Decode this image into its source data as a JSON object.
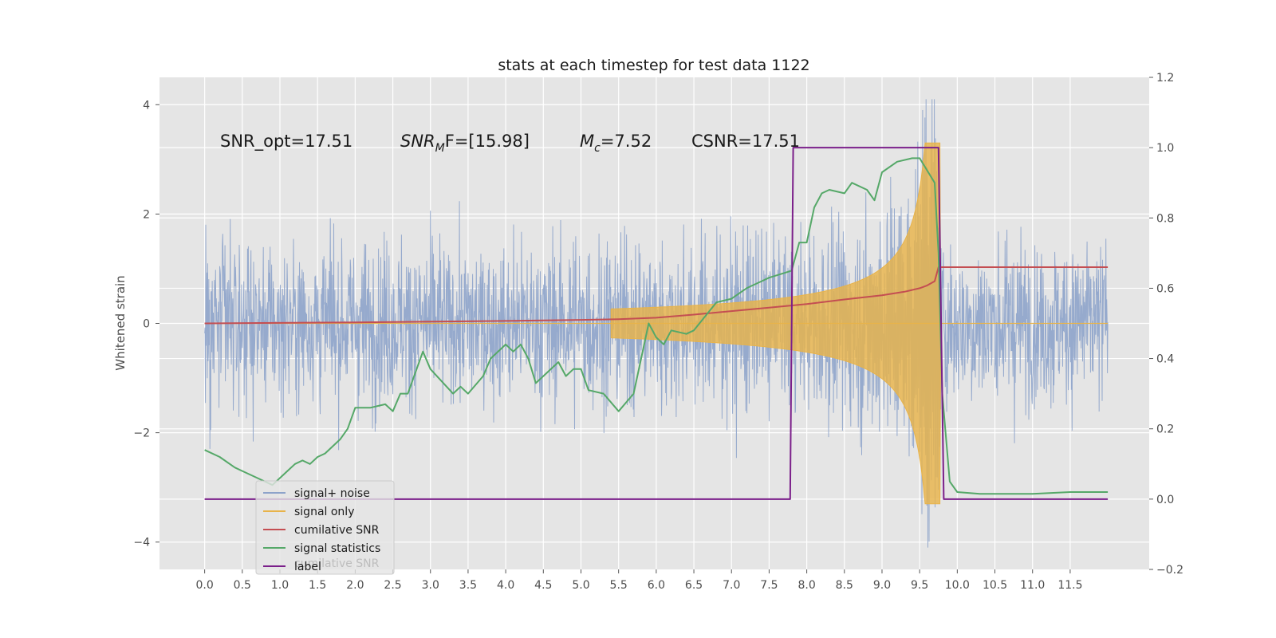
{
  "chart_data": {
    "type": "line",
    "title": "stats at each timestep for test data 1122",
    "ylabel": "Whitened strain",
    "y2label": "",
    "xlim": [
      -0.6,
      12.55
    ],
    "ylim": [
      -4.5,
      4.5
    ],
    "y2lim": [
      -0.2,
      1.2
    ],
    "grid": true,
    "x_ticks": [
      0.0,
      0.5,
      1.0,
      1.5,
      2.0,
      2.5,
      3.0,
      3.5,
      4.0,
      4.5,
      5.0,
      5.5,
      6.0,
      6.5,
      7.0,
      7.5,
      8.0,
      8.5,
      9.0,
      9.5,
      10.0,
      10.5,
      11.0,
      11.5
    ],
    "x_tick_labels": [
      "0.0",
      "0.5",
      "1.0",
      "1.5",
      "2.0",
      "2.5",
      "3.0",
      "3.5",
      "4.0",
      "4.5",
      "5.0",
      "5.5",
      "6.0",
      "6.5",
      "7.0",
      "7.5",
      "8.0",
      "8.5",
      "9.0",
      "9.5",
      "10.0",
      "10.5",
      "11.0",
      "11.5"
    ],
    "y_ticks": [
      -4,
      -2,
      0,
      2,
      4
    ],
    "y_tick_labels": [
      "−4",
      "−2",
      "0",
      "2",
      "4"
    ],
    "y2_ticks": [
      -0.2,
      0.0,
      0.2,
      0.4,
      0.6,
      0.8,
      1.0,
      1.2
    ],
    "y2_tick_labels": [
      "−0.2",
      "0.0",
      "0.2",
      "0.4",
      "0.6",
      "0.8",
      "1.0",
      "1.2"
    ],
    "annotations": {
      "snr_opt": "SNR_opt=17.51",
      "snr_mf_base": "SNR",
      "snr_mf_sub": "M",
      "snr_mf_rest": "F=[15.98]",
      "mc_base": "M",
      "mc_sub": "c",
      "mc_rest": "=7.52",
      "csnr": "CSNR=17.51"
    },
    "legend": {
      "placement": "lower-left",
      "items": [
        "signal+ noise",
        "signal only",
        "cumilative SNR",
        "signal statistics",
        "label"
      ],
      "ghost_text": "cumilative SNR"
    },
    "series": [
      {
        "name": "signal+ noise",
        "axis": "left",
        "color": "#8da3ca",
        "style": "noise",
        "x_range": [
          0.0,
          12.0
        ],
        "typical_range": [
          -2.0,
          2.0
        ],
        "peak_range": [
          -4.1,
          4.1
        ]
      },
      {
        "name": "signal only",
        "axis": "left",
        "color": "#e8b34a",
        "style": "chirp",
        "x_range": [
          0.0,
          12.0
        ],
        "chirp_start": 5.8,
        "merger": 9.72,
        "peak_amplitude": 3.3
      },
      {
        "name": "cumilative SNR",
        "axis": "right",
        "color": "#c44e52",
        "x": [
          0.0,
          2.0,
          4.0,
          5.0,
          5.5,
          6.0,
          6.5,
          7.0,
          7.5,
          8.0,
          8.5,
          9.0,
          9.3,
          9.5,
          9.6,
          9.7,
          9.75,
          10.0,
          11.0,
          12.0
        ],
        "y": [
          0.5,
          0.503,
          0.507,
          0.51,
          0.512,
          0.516,
          0.525,
          0.535,
          0.545,
          0.555,
          0.568,
          0.58,
          0.59,
          0.6,
          0.608,
          0.62,
          0.66,
          0.66,
          0.66,
          0.66
        ]
      },
      {
        "name": "signal statistics",
        "axis": "right",
        "color": "#55a868",
        "x": [
          0.0,
          0.2,
          0.4,
          0.5,
          0.7,
          0.9,
          1.0,
          1.1,
          1.2,
          1.3,
          1.4,
          1.5,
          1.6,
          1.8,
          1.9,
          2.0,
          2.2,
          2.4,
          2.5,
          2.6,
          2.7,
          2.9,
          3.0,
          3.3,
          3.4,
          3.5,
          3.7,
          3.8,
          4.0,
          4.1,
          4.2,
          4.3,
          4.4,
          4.5,
          4.7,
          4.8,
          4.9,
          5.0,
          5.1,
          5.3,
          5.5,
          5.7,
          5.9,
          6.0,
          6.1,
          6.2,
          6.4,
          6.5,
          6.8,
          7.0,
          7.2,
          7.4,
          7.5,
          7.8,
          7.9,
          8.0,
          8.1,
          8.2,
          8.3,
          8.5,
          8.6,
          8.8,
          8.9,
          9.0,
          9.2,
          9.4,
          9.5,
          9.7,
          9.75,
          9.8,
          9.9,
          10.0,
          10.3,
          11.0,
          11.5,
          12.0
        ],
        "y": [
          0.14,
          0.12,
          0.09,
          0.08,
          0.06,
          0.04,
          0.06,
          0.08,
          0.1,
          0.11,
          0.1,
          0.12,
          0.13,
          0.17,
          0.2,
          0.26,
          0.26,
          0.27,
          0.25,
          0.3,
          0.3,
          0.42,
          0.37,
          0.3,
          0.32,
          0.3,
          0.35,
          0.4,
          0.44,
          0.42,
          0.44,
          0.4,
          0.33,
          0.35,
          0.39,
          0.35,
          0.37,
          0.37,
          0.31,
          0.3,
          0.25,
          0.3,
          0.5,
          0.46,
          0.44,
          0.48,
          0.47,
          0.48,
          0.56,
          0.57,
          0.6,
          0.62,
          0.63,
          0.65,
          0.73,
          0.73,
          0.83,
          0.87,
          0.88,
          0.87,
          0.9,
          0.88,
          0.85,
          0.93,
          0.96,
          0.97,
          0.97,
          0.9,
          0.7,
          0.3,
          0.05,
          0.02,
          0.015,
          0.015,
          0.02,
          0.02
        ]
      },
      {
        "name": "label",
        "axis": "right",
        "color": "#7b1f8a",
        "x": [
          0.0,
          7.78,
          7.82,
          9.75,
          9.82,
          12.0
        ],
        "y": [
          0.0,
          0.0,
          1.0,
          1.0,
          0.0,
          0.0
        ]
      }
    ]
  }
}
